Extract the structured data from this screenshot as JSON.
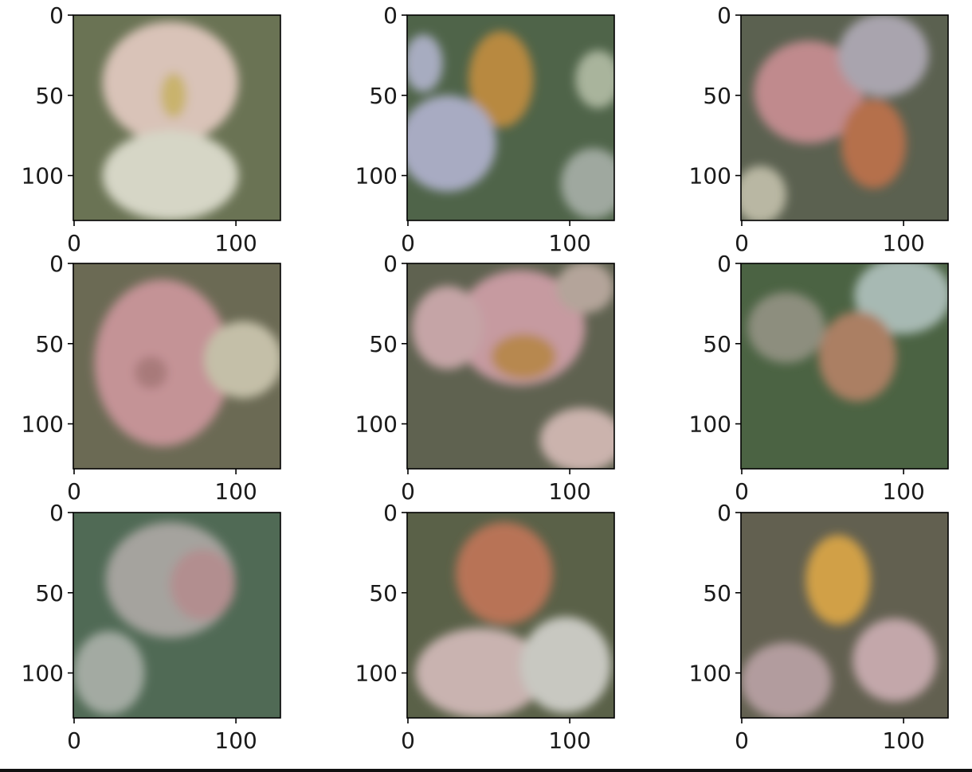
{
  "figure": {
    "description_free": true,
    "grid": {
      "rows": 3,
      "cols": 3
    },
    "axes": {
      "x_ticks": [
        0,
        100
      ],
      "y_ticks": [
        0,
        50,
        100
      ],
      "x_range": [
        0,
        128
      ],
      "y_range": [
        0,
        128
      ]
    },
    "panels": [
      {
        "id": "p00",
        "bg": "#6a7354",
        "blobs": [
          {
            "cx": 60,
            "cy": 42,
            "rx": 42,
            "ry": 38,
            "color": "#d9c3b8"
          },
          {
            "cx": 60,
            "cy": 100,
            "rx": 42,
            "ry": 28,
            "color": "#d6d6c6"
          },
          {
            "cx": 62,
            "cy": 50,
            "rx": 8,
            "ry": 14,
            "color": "#c9b36d"
          }
        ]
      },
      {
        "id": "p01",
        "bg": "#4f6449",
        "blobs": [
          {
            "cx": 58,
            "cy": 40,
            "rx": 20,
            "ry": 30,
            "color": "#b8893f"
          },
          {
            "cx": 25,
            "cy": 80,
            "rx": 30,
            "ry": 30,
            "color": "#a8abc2"
          },
          {
            "cx": 10,
            "cy": 30,
            "rx": 12,
            "ry": 18,
            "color": "#a7acc0"
          },
          {
            "cx": 118,
            "cy": 40,
            "rx": 14,
            "ry": 18,
            "color": "#a9b49c"
          },
          {
            "cx": 115,
            "cy": 105,
            "rx": 20,
            "ry": 22,
            "color": "#9fa89f"
          }
        ]
      },
      {
        "id": "p02",
        "bg": "#5b6150",
        "blobs": [
          {
            "cx": 42,
            "cy": 48,
            "rx": 34,
            "ry": 32,
            "color": "#c08a8d"
          },
          {
            "cx": 82,
            "cy": 80,
            "rx": 20,
            "ry": 28,
            "color": "#b5704c"
          },
          {
            "cx": 88,
            "cy": 25,
            "rx": 28,
            "ry": 26,
            "color": "#a9a4ae"
          },
          {
            "cx": 12,
            "cy": 112,
            "rx": 16,
            "ry": 18,
            "color": "#b9b7a3"
          }
        ]
      },
      {
        "id": "p10",
        "bg": "#6b6a54",
        "blobs": [
          {
            "cx": 55,
            "cy": 62,
            "rx": 42,
            "ry": 52,
            "color": "#c49396"
          },
          {
            "cx": 105,
            "cy": 60,
            "rx": 24,
            "ry": 24,
            "color": "#c4bfa8"
          },
          {
            "cx": 48,
            "cy": 68,
            "rx": 10,
            "ry": 10,
            "color": "#a87a7a"
          }
        ]
      },
      {
        "id": "p11",
        "bg": "#5f6250",
        "blobs": [
          {
            "cx": 70,
            "cy": 40,
            "rx": 40,
            "ry": 36,
            "color": "#c69aa0"
          },
          {
            "cx": 72,
            "cy": 58,
            "rx": 20,
            "ry": 14,
            "color": "#b78850"
          },
          {
            "cx": 25,
            "cy": 40,
            "rx": 22,
            "ry": 26,
            "color": "#c5a4a6"
          },
          {
            "cx": 108,
            "cy": 110,
            "rx": 26,
            "ry": 20,
            "color": "#cbb3ad"
          },
          {
            "cx": 110,
            "cy": 15,
            "rx": 18,
            "ry": 16,
            "color": "#b4a49a"
          }
        ]
      },
      {
        "id": "p12",
        "bg": "#4b6343",
        "blobs": [
          {
            "cx": 100,
            "cy": 20,
            "rx": 30,
            "ry": 24,
            "color": "#a7b9b3"
          },
          {
            "cx": 72,
            "cy": 58,
            "rx": 24,
            "ry": 28,
            "color": "#ab7f63"
          },
          {
            "cx": 28,
            "cy": 40,
            "rx": 24,
            "ry": 22,
            "color": "#8d8e7e"
          }
        ]
      },
      {
        "id": "p20",
        "bg": "#506a55",
        "blobs": [
          {
            "cx": 60,
            "cy": 42,
            "rx": 40,
            "ry": 36,
            "color": "#a5a39e"
          },
          {
            "cx": 80,
            "cy": 45,
            "rx": 20,
            "ry": 22,
            "color": "#b28e8f"
          },
          {
            "cx": 22,
            "cy": 100,
            "rx": 22,
            "ry": 26,
            "color": "#a3aaa2"
          }
        ]
      },
      {
        "id": "p21",
        "bg": "#5a6148",
        "blobs": [
          {
            "cx": 60,
            "cy": 38,
            "rx": 30,
            "ry": 32,
            "color": "#b87356"
          },
          {
            "cx": 45,
            "cy": 100,
            "rx": 40,
            "ry": 28,
            "color": "#c9b3b0"
          },
          {
            "cx": 98,
            "cy": 95,
            "rx": 28,
            "ry": 30,
            "color": "#c8c8c1"
          }
        ]
      },
      {
        "id": "p22",
        "bg": "#626050",
        "blobs": [
          {
            "cx": 60,
            "cy": 42,
            "rx": 20,
            "ry": 28,
            "color": "#d1a046"
          },
          {
            "cx": 28,
            "cy": 105,
            "rx": 28,
            "ry": 24,
            "color": "#b29c9e"
          },
          {
            "cx": 95,
            "cy": 92,
            "rx": 26,
            "ry": 26,
            "color": "#c3a7aa"
          }
        ]
      }
    ]
  }
}
